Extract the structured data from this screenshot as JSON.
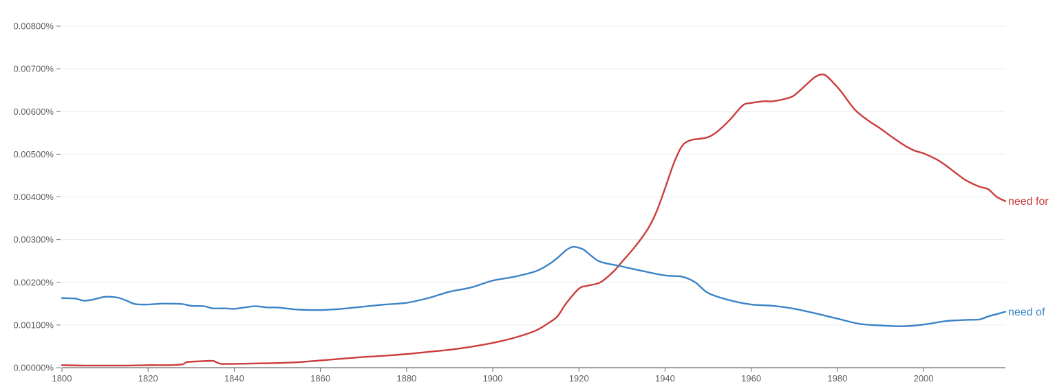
{
  "chart_data": {
    "type": "line",
    "title": "",
    "xlabel": "",
    "ylabel": "",
    "xlim": [
      1800,
      2019
    ],
    "ylim": [
      0,
      0.008
    ],
    "y_ticks": [
      {
        "value": 0,
        "label": "0.00000%"
      },
      {
        "value": 0.001,
        "label": "0.00100%"
      },
      {
        "value": 0.002,
        "label": "0.00200%"
      },
      {
        "value": 0.003,
        "label": "0.00300%"
      },
      {
        "value": 0.004,
        "label": "0.00400%"
      },
      {
        "value": 0.005,
        "label": "0.00500%"
      },
      {
        "value": 0.006,
        "label": "0.00600%"
      },
      {
        "value": 0.007,
        "label": "0.00700%"
      },
      {
        "value": 0.008,
        "label": "0.00800%"
      }
    ],
    "x_ticks": [
      {
        "value": 1800,
        "label": "1800"
      },
      {
        "value": 1820,
        "label": "1820"
      },
      {
        "value": 1840,
        "label": "1840"
      },
      {
        "value": 1860,
        "label": "1860"
      },
      {
        "value": 1880,
        "label": "1880"
      },
      {
        "value": 1900,
        "label": "1900"
      },
      {
        "value": 1920,
        "label": "1920"
      },
      {
        "value": 1940,
        "label": "1940"
      },
      {
        "value": 1960,
        "label": "1960"
      },
      {
        "value": 1980,
        "label": "1980"
      },
      {
        "value": 2000,
        "label": "2000"
      }
    ],
    "series": [
      {
        "name": "need for",
        "color": "#cc3b3b",
        "x": [
          1800,
          1805,
          1810,
          1815,
          1820,
          1825,
          1828,
          1829,
          1832,
          1835,
          1836,
          1837,
          1840,
          1845,
          1850,
          1855,
          1860,
          1865,
          1870,
          1875,
          1880,
          1885,
          1890,
          1895,
          1900,
          1905,
          1910,
          1913,
          1915,
          1917,
          1920,
          1922,
          1925,
          1928,
          1930,
          1933,
          1936,
          1938,
          1940,
          1942,
          1944,
          1946,
          1948,
          1950,
          1952,
          1955,
          1958,
          1960,
          1963,
          1965,
          1968,
          1970,
          1973,
          1975,
          1977,
          1979,
          1981,
          1984,
          1987,
          1990,
          1993,
          1996,
          1998,
          2000,
          2003,
          2005,
          2008,
          2010,
          2013,
          2015,
          2017,
          2019
        ],
        "values": [
          6e-05,
          5e-05,
          5e-05,
          5e-05,
          6e-05,
          6e-05,
          8e-05,
          0.00013,
          0.00015,
          0.00016,
          0.00012,
          9e-05,
          9e-05,
          0.0001,
          0.00011,
          0.00013,
          0.00017,
          0.00021,
          0.00025,
          0.00028,
          0.00032,
          0.00037,
          0.00042,
          0.00049,
          0.00058,
          0.0007,
          0.00087,
          0.00105,
          0.0012,
          0.0015,
          0.00185,
          0.00192,
          0.002,
          0.00225,
          0.00248,
          0.00283,
          0.00325,
          0.00365,
          0.0042,
          0.00478,
          0.0052,
          0.00533,
          0.00536,
          0.0054,
          0.00552,
          0.0058,
          0.00614,
          0.0062,
          0.00624,
          0.00624,
          0.0063,
          0.00638,
          0.00665,
          0.00682,
          0.00686,
          0.00668,
          0.00645,
          0.00605,
          0.0058,
          0.0056,
          0.00538,
          0.00518,
          0.00508,
          0.00502,
          0.00488,
          0.00475,
          0.00452,
          0.00438,
          0.00424,
          0.00418,
          0.004,
          0.0039
        ]
      },
      {
        "name": "need of",
        "color": "#3b83c8",
        "x": [
          1800,
          1803,
          1805,
          1807,
          1810,
          1813,
          1815,
          1817,
          1820,
          1823,
          1825,
          1828,
          1830,
          1833,
          1835,
          1838,
          1840,
          1843,
          1845,
          1848,
          1850,
          1855,
          1860,
          1865,
          1870,
          1875,
          1880,
          1885,
          1890,
          1895,
          1900,
          1905,
          1910,
          1913,
          1915,
          1917,
          1918,
          1919,
          1921,
          1923,
          1925,
          1930,
          1935,
          1940,
          1944,
          1947,
          1950,
          1955,
          1960,
          1965,
          1970,
          1975,
          1980,
          1985,
          1990,
          1995,
          2000,
          2005,
          2008,
          2010,
          2013,
          2015,
          2019
        ],
        "values": [
          0.00163,
          0.00162,
          0.00157,
          0.00159,
          0.00166,
          0.00164,
          0.00157,
          0.00149,
          0.00148,
          0.0015,
          0.0015,
          0.00149,
          0.00145,
          0.00144,
          0.00139,
          0.00139,
          0.00138,
          0.00142,
          0.00144,
          0.00141,
          0.00141,
          0.00136,
          0.00135,
          0.00138,
          0.00143,
          0.00148,
          0.00152,
          0.00163,
          0.00178,
          0.00188,
          0.00204,
          0.00213,
          0.00226,
          0.00242,
          0.00257,
          0.00275,
          0.00281,
          0.00283,
          0.00277,
          0.00261,
          0.00248,
          0.00237,
          0.00226,
          0.00216,
          0.00213,
          0.002,
          0.00175,
          0.00158,
          0.00148,
          0.00145,
          0.00138,
          0.00127,
          0.00115,
          0.00103,
          0.00099,
          0.00097,
          0.00101,
          0.00109,
          0.00111,
          0.00112,
          0.00113,
          0.0012,
          0.00131
        ]
      }
    ]
  }
}
